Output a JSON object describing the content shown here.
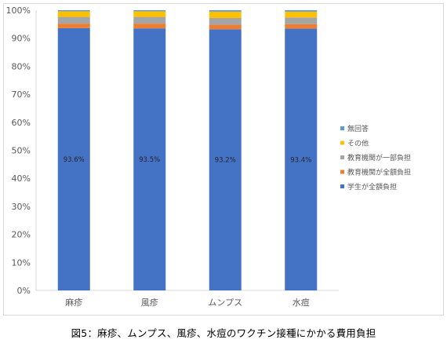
{
  "chart_data": {
    "type": "bar",
    "stacked": true,
    "normalized_percent": true,
    "categories": [
      "麻疹",
      "風疹",
      "ムンプス",
      "水痘"
    ],
    "series": [
      {
        "name": "学生が全額負担",
        "color": "#4472C4",
        "values": [
          93.6,
          93.5,
          93.2,
          93.4
        ],
        "labels": [
          "93.6%",
          "93.5%",
          "93.2%",
          "93.4%"
        ]
      },
      {
        "name": "教育機関が全額負担",
        "color": "#ED7D31",
        "values": [
          1.6,
          1.7,
          1.6,
          1.6
        ]
      },
      {
        "name": "教育機関が一部負担",
        "color": "#A5A5A5",
        "values": [
          2.4,
          2.4,
          2.4,
          2.4
        ]
      },
      {
        "name": "その他",
        "color": "#FFC000",
        "values": [
          2.0,
          2.0,
          2.3,
          2.1
        ]
      },
      {
        "name": "無回答",
        "color": "#5B9BD5",
        "values": [
          0.4,
          0.4,
          0.5,
          0.5
        ]
      }
    ],
    "y_ticks": [
      "0%",
      "10%",
      "20%",
      "30%",
      "40%",
      "50%",
      "60%",
      "70%",
      "80%",
      "90%",
      "100%"
    ],
    "ylim": [
      0,
      100
    ],
    "grid": false,
    "legend_position": "right",
    "legend_order": [
      "無回答",
      "その他",
      "教育機関が一部負担",
      "教育機関が全額負担",
      "学生が全額負担"
    ]
  },
  "caption": "図5：麻疹、ムンプス、風疹、水痘のワクチン接種にかかる費用負担"
}
